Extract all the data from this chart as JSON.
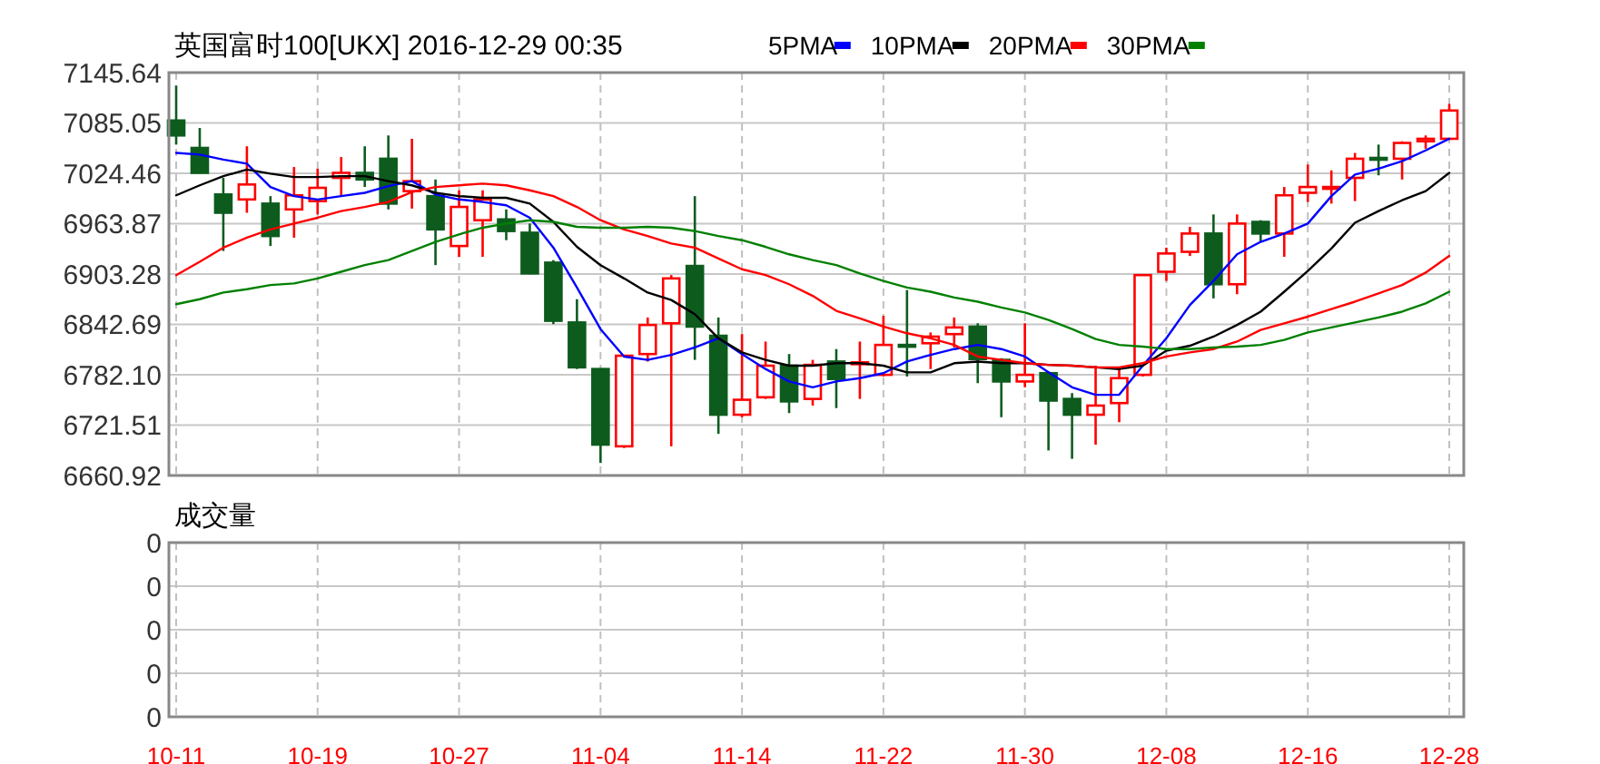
{
  "chart_data": [
    {
      "type": "candlestick",
      "title": "英国富时100[UKX] 2016-12-29 00:35",
      "categories": [
        null,
        null,
        null,
        null,
        null,
        null,
        null,
        null,
        null,
        null,
        null,
        null,
        null,
        null,
        null,
        null,
        null,
        null,
        null,
        null,
        null,
        null,
        null,
        null,
        null,
        null,
        null,
        null,
        null,
        null,
        null,
        null,
        null,
        null,
        null,
        null,
        null,
        null,
        null,
        null,
        null,
        null,
        null,
        null,
        null,
        null,
        null,
        null,
        null,
        null,
        null,
        null,
        null,
        null,
        null
      ],
      "ohlc": [
        [
          7088,
          7130,
          7059,
          7070
        ],
        [
          7055,
          7079,
          7024,
          7025
        ],
        [
          6999,
          7019,
          6931,
          6977
        ],
        [
          6993,
          7057,
          6977,
          7011
        ],
        [
          6988,
          6997,
          6937,
          6949
        ],
        [
          6981,
          7032,
          6947,
          6998
        ],
        [
          6991,
          7030,
          6975,
          7007
        ],
        [
          7019,
          7044,
          6997,
          7025
        ],
        [
          7025,
          7057,
          7008,
          7017
        ],
        [
          7042,
          7070,
          6981,
          6988
        ],
        [
          7003,
          7066,
          6982,
          7015
        ],
        [
          6997,
          7017,
          6914,
          6957
        ],
        [
          6937,
          7004,
          6924,
          6984
        ],
        [
          6968,
          7004,
          6924,
          6993
        ],
        [
          6969,
          6981,
          6944,
          6955
        ],
        [
          6953,
          6964,
          6903,
          6904
        ],
        [
          6917,
          6920,
          6843,
          6847
        ],
        [
          6845,
          6873,
          6789,
          6791
        ],
        [
          6789,
          6790,
          6676,
          6698
        ],
        [
          6696,
          6806,
          6694,
          6805
        ],
        [
          6807,
          6851,
          6798,
          6842
        ],
        [
          6844,
          6902,
          6696,
          6898
        ],
        [
          6913,
          6997,
          6800,
          6840
        ],
        [
          6829,
          6851,
          6711,
          6734
        ],
        [
          6734,
          6831,
          6731,
          6752
        ],
        [
          6755,
          6822,
          6753,
          6793
        ],
        [
          6793,
          6807,
          6736,
          6750
        ],
        [
          6753,
          6800,
          6745,
          6794
        ],
        [
          6798,
          6813,
          6742,
          6777
        ],
        [
          6795,
          6822,
          6753,
          6797
        ],
        [
          6782,
          6853,
          6780,
          6818
        ],
        [
          6818,
          6884,
          6780,
          6816
        ],
        [
          6820,
          6833,
          6789,
          6828
        ],
        [
          6831,
          6851,
          6815,
          6839
        ],
        [
          6840,
          6844,
          6772,
          6801
        ],
        [
          6800,
          6802,
          6731,
          6774
        ],
        [
          6774,
          6844,
          6767,
          6782
        ],
        [
          6784,
          6786,
          6691,
          6751
        ],
        [
          6753,
          6760,
          6681,
          6734
        ],
        [
          6734,
          6793,
          6698,
          6745
        ],
        [
          6748,
          6791,
          6725,
          6778
        ],
        [
          6782,
          6902,
          6780,
          6902
        ],
        [
          6906,
          6935,
          6895,
          6928
        ],
        [
          6930,
          6960,
          6925,
          6952
        ],
        [
          6952,
          6975,
          6874,
          6891
        ],
        [
          6891,
          6975,
          6879,
          6964
        ],
        [
          6966,
          6968,
          6942,
          6952
        ],
        [
          6952,
          7008,
          6924,
          6998
        ],
        [
          7001,
          7035,
          6990,
          7008
        ],
        [
          7006,
          7028,
          6988,
          7008
        ],
        [
          7019,
          7049,
          6991,
          7042
        ],
        [
          7043,
          7059,
          7022,
          7041
        ],
        [
          7042,
          7063,
          7017,
          7061
        ],
        [
          7063,
          7070,
          7054,
          7066
        ],
        [
          7066,
          7108,
          7066,
          7100
        ]
      ],
      "series": [
        {
          "name": "5PMA",
          "type": "line",
          "color": "#0000ff",
          "values": [
            7049,
            7047,
            7041,
            7036,
            7008,
            6997,
            6993,
            6997,
            7001,
            7009,
            7015,
            6999,
            6993,
            6990,
            6986,
            6971,
            6935,
            6887,
            6837,
            6804,
            6800,
            6806,
            6815,
            6826,
            6807,
            6789,
            6774,
            6767,
            6774,
            6778,
            6784,
            6798,
            6806,
            6813,
            6818,
            6813,
            6804,
            6785,
            6767,
            6758,
            6758,
            6793,
            6826,
            6866,
            6895,
            6927,
            6942,
            6952,
            6964,
            6997,
            7023,
            7030,
            7039,
            7052,
            7066
          ]
        },
        {
          "name": "10PMA",
          "type": "line",
          "color": "#000000",
          "values": [
            6998,
            7010,
            7021,
            7029,
            7024,
            7020,
            7020,
            7021,
            7021,
            7015,
            7010,
            7001,
            6997,
            6995,
            6995,
            6988,
            6966,
            6936,
            6914,
            6898,
            6881,
            6872,
            6855,
            6826,
            6809,
            6800,
            6793,
            6793,
            6796,
            6796,
            6793,
            6785,
            6785,
            6796,
            6798,
            6796,
            6796,
            6794,
            6793,
            6791,
            6789,
            6793,
            6811,
            6817,
            6828,
            6842,
            6858,
            6882,
            6907,
            6934,
            6965,
            6979,
            6992,
            7003,
            7025
          ]
        },
        {
          "name": "20PMA",
          "type": "line",
          "color": "#ff0000",
          "values": [
            6902,
            6918,
            6935,
            6947,
            6957,
            6964,
            6971,
            6979,
            6984,
            6990,
            7002,
            7008,
            7010,
            7012,
            7010,
            7004,
            6997,
            6984,
            6968,
            6957,
            6949,
            6940,
            6935,
            6922,
            6909,
            6902,
            6891,
            6877,
            6859,
            6850,
            6840,
            6832,
            6826,
            6818,
            6804,
            6800,
            6796,
            6794,
            6793,
            6791,
            6791,
            6796,
            6804,
            6809,
            6813,
            6822,
            6836,
            6844,
            6852,
            6861,
            6870,
            6880,
            6890,
            6905,
            6925
          ]
        },
        {
          "name": "30PMA",
          "type": "line",
          "color": "#008000",
          "values": [
            6867,
            6873,
            6881,
            6885,
            6890,
            6892,
            6898,
            6906,
            6914,
            6920,
            6931,
            6942,
            6951,
            6959,
            6964,
            6968,
            6966,
            6960,
            6959,
            6959,
            6960,
            6959,
            6955,
            6949,
            6944,
            6936,
            6927,
            6920,
            6914,
            6904,
            6895,
            6887,
            6882,
            6875,
            6870,
            6863,
            6857,
            6848,
            6837,
            6825,
            6818,
            6816,
            6813,
            6813,
            6815,
            6816,
            6818,
            6824,
            6833,
            6839,
            6845,
            6851,
            6858,
            6868,
            6882
          ]
        }
      ],
      "ylim": [
        6660.92,
        7145.64
      ],
      "yticks": [
        6660.92,
        6721.51,
        {
          "value": 6782.1,
          "label": "6782.10"
        },
        6842.69,
        6903.28,
        6963.87,
        7024.46,
        7085.05,
        7145.64
      ],
      "grid": true,
      "legend": "top",
      "tick_labels": "y"
    },
    {
      "type": "other",
      "title": "成交量",
      "categories": [
        "10-11",
        null,
        null,
        null,
        null,
        null,
        "10-19",
        null,
        null,
        null,
        null,
        null,
        "10-27",
        null,
        null,
        null,
        null,
        null,
        "11-04",
        null,
        null,
        null,
        null,
        null,
        "11-14",
        null,
        null,
        null,
        null,
        null,
        "11-22",
        null,
        null,
        null,
        null,
        null,
        "11-30",
        null,
        null,
        null,
        null,
        null,
        "12-08",
        null,
        null,
        null,
        null,
        null,
        "12-16",
        null,
        null,
        null,
        null,
        null,
        "12-28"
      ],
      "annotations": [
        "0",
        "0",
        "0",
        "0",
        "0"
      ]
    }
  ]
}
